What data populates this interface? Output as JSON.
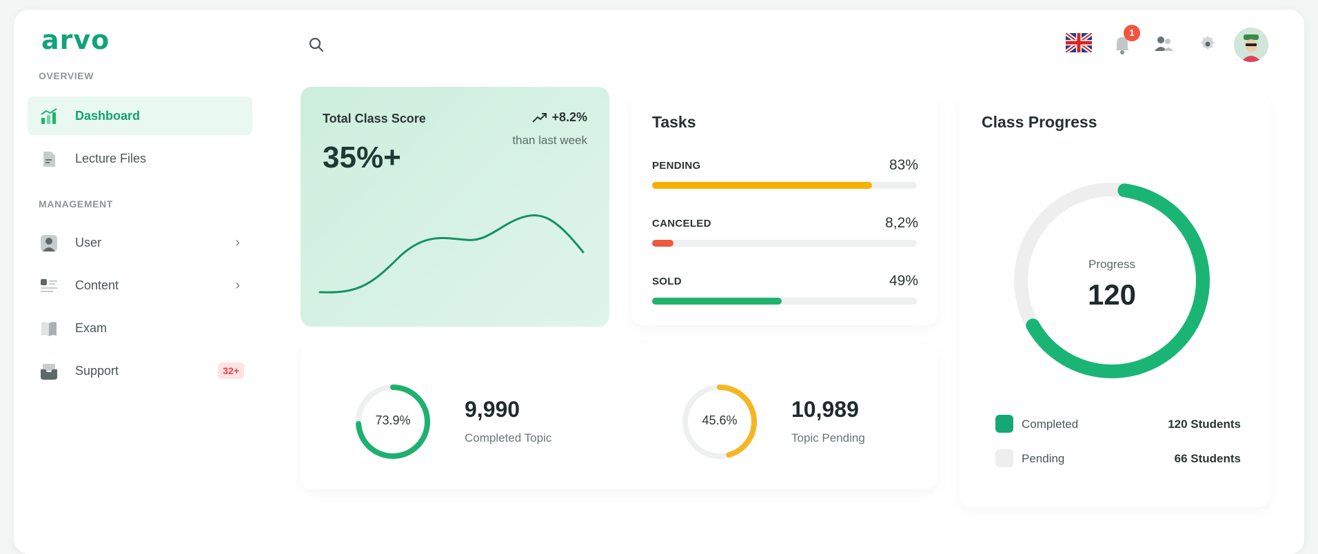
{
  "app": {
    "logo": "arvo"
  },
  "sidebar": {
    "overview_label": "OVERVIEW",
    "management_label": "MANAGEMENT",
    "items": [
      {
        "label": "Dashboard",
        "icon": "chart-icon",
        "active": true
      },
      {
        "label": "Lecture Files",
        "icon": "file-icon"
      },
      {
        "label": "User",
        "icon": "user-icon"
      },
      {
        "label": "Content",
        "icon": "content-icon"
      },
      {
        "label": "Exam",
        "icon": "book-icon"
      },
      {
        "label": "Support",
        "icon": "inbox-icon",
        "badge": "32+"
      }
    ]
  },
  "header": {
    "notification_count": "1"
  },
  "score_card": {
    "title": "Total Class Score",
    "value": "35%+",
    "trend": "+8.2%",
    "trend_sub": "than last week"
  },
  "tasks": {
    "title": "Tasks",
    "rows": [
      {
        "label": "PENDING",
        "value": "83%",
        "pct": 83,
        "color": "#f5b000"
      },
      {
        "label": "CANCELED",
        "value": "8,2%",
        "pct": 8.2,
        "color": "#ee5a3b"
      },
      {
        "label": "SOLD",
        "value": "49%",
        "pct": 49,
        "color": "#1fb36c"
      }
    ]
  },
  "stats": [
    {
      "pct_label": "73.9%",
      "pct": 73.9,
      "value": "9,990",
      "label": "Completed Topic",
      "color": "#1eb06f"
    },
    {
      "pct_label": "45.6%",
      "pct": 45.6,
      "value": "10,989",
      "label": "Topic Pending",
      "color": "#f6b624"
    }
  ],
  "progress": {
    "title": "Class Progress",
    "center_label": "Progress",
    "center_value": "120",
    "completed_fraction": 0.645,
    "legend": [
      {
        "name": "Completed",
        "value": "120 Students",
        "color": "#14a877"
      },
      {
        "name": "Pending",
        "value": "66 Students",
        "color": "#eeeeee"
      }
    ]
  }
}
